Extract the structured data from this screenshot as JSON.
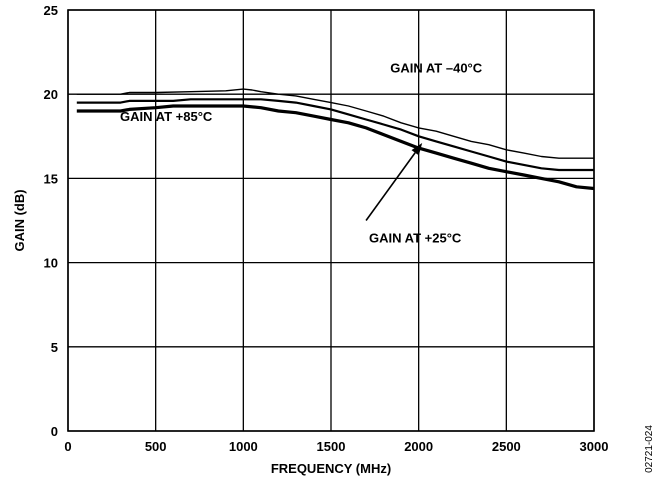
{
  "chart_data": {
    "type": "line",
    "title": "",
    "xlabel": "FREQUENCY (MHz)",
    "ylabel": "GAIN (dB)",
    "xlim": [
      0,
      3000
    ],
    "ylim": [
      0,
      25
    ],
    "xticks": [
      0,
      500,
      1000,
      1500,
      2000,
      2500,
      3000
    ],
    "yticks": [
      0,
      5,
      10,
      15,
      20,
      25
    ],
    "grid": true,
    "legend": "none",
    "series": [
      {
        "name": "GAIN AT –40°C",
        "x": [
          50,
          300,
          350,
          500,
          700,
          900,
          1000,
          1050,
          1100,
          1200,
          1300,
          1400,
          1500,
          1600,
          1700,
          1800,
          1900,
          2000,
          2100,
          2200,
          2300,
          2400,
          2500,
          2600,
          2700,
          2800,
          2900,
          3000
        ],
        "y": [
          20.0,
          20.0,
          20.1,
          20.1,
          20.15,
          20.2,
          20.3,
          20.25,
          20.15,
          20.0,
          19.9,
          19.7,
          19.5,
          19.3,
          19.0,
          18.7,
          18.3,
          18.0,
          17.8,
          17.5,
          17.2,
          17.0,
          16.7,
          16.5,
          16.3,
          16.2,
          16.2,
          16.2
        ]
      },
      {
        "name": "GAIN AT +85°C",
        "x": [
          50,
          300,
          350,
          500,
          600,
          700,
          800,
          900,
          1000,
          1100,
          1200,
          1300,
          1400,
          1500,
          1600,
          1700,
          1800,
          1900,
          2000,
          2100,
          2200,
          2300,
          2400,
          2500,
          2600,
          2700,
          2800,
          2900,
          3000
        ],
        "y": [
          19.5,
          19.5,
          19.6,
          19.6,
          19.6,
          19.7,
          19.7,
          19.7,
          19.7,
          19.7,
          19.6,
          19.5,
          19.3,
          19.1,
          18.8,
          18.5,
          18.2,
          17.9,
          17.5,
          17.2,
          16.9,
          16.6,
          16.3,
          16.0,
          15.8,
          15.6,
          15.5,
          15.5,
          15.5
        ]
      },
      {
        "name": "GAIN AT +25°C",
        "x": [
          50,
          300,
          350,
          500,
          600,
          700,
          800,
          900,
          1000,
          1100,
          1200,
          1300,
          1400,
          1500,
          1600,
          1700,
          1800,
          1900,
          2000,
          2100,
          2200,
          2300,
          2400,
          2500,
          2600,
          2700,
          2800,
          2900,
          3000
        ],
        "y": [
          19.0,
          19.0,
          19.1,
          19.2,
          19.3,
          19.3,
          19.3,
          19.3,
          19.3,
          19.2,
          19.0,
          18.9,
          18.7,
          18.5,
          18.3,
          18.0,
          17.6,
          17.2,
          16.8,
          16.5,
          16.2,
          15.9,
          15.6,
          15.4,
          15.2,
          15.0,
          14.8,
          14.5,
          14.4
        ]
      }
    ],
    "annotations": [
      {
        "text": "GAIN AT –40°C",
        "x": 2100,
        "y": 21.3
      },
      {
        "text": "GAIN AT +85°C",
        "x": 560,
        "y": 18.4
      },
      {
        "text": "GAIN AT +25°C",
        "x": 1980,
        "y": 11.2
      }
    ],
    "arrow": {
      "from": [
        1700,
        12.5
      ],
      "to": [
        2020,
        17.1
      ]
    },
    "figure_id": "02721-024"
  }
}
